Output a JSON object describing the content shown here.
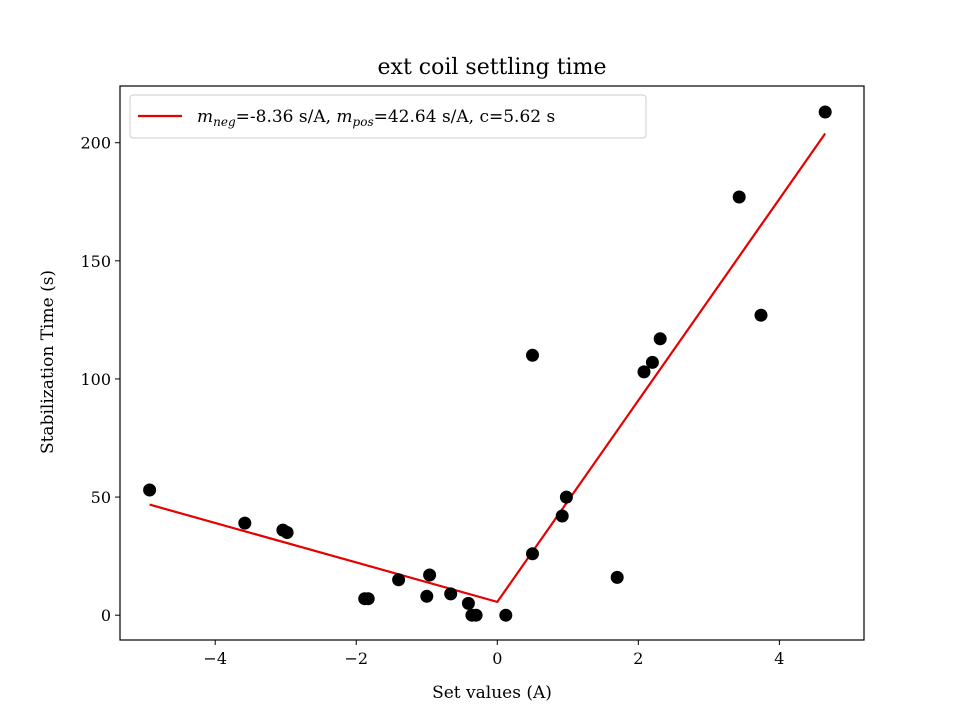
{
  "chart_data": {
    "type": "scatter",
    "title": "ext coil settling time",
    "xlabel": "Set values (A)",
    "ylabel": "Stabilization Time (s)",
    "xlim": [
      -5.35,
      5.2
    ],
    "ylim": [
      -10.5,
      224
    ],
    "xticks": [
      -4,
      -2,
      0,
      2,
      4
    ],
    "yticks": [
      0,
      50,
      100,
      150,
      200
    ],
    "xtick_labels": [
      "−4",
      "−2",
      "0",
      "2",
      "4"
    ],
    "ytick_labels": [
      "0",
      "50",
      "100",
      "150",
      "200"
    ],
    "grid": false,
    "legend_position": "top-left",
    "point_color": "#000000",
    "fit_color": "#e60000",
    "series": [
      {
        "kind": "points",
        "x": [
          -4.93,
          -3.58,
          -3.04,
          -2.98,
          -1.88,
          -1.83,
          -1.4,
          -1.0,
          -0.96,
          -0.66,
          -0.41,
          -0.36,
          -0.3,
          0.12,
          0.5,
          0.5,
          0.92,
          0.98,
          1.7,
          2.08,
          2.2,
          2.31,
          3.43,
          3.74,
          4.65
        ],
        "y": [
          53,
          39,
          36,
          35,
          7,
          7,
          15,
          8,
          17,
          9,
          5,
          0,
          0,
          0,
          26,
          110,
          42,
          50,
          16,
          103,
          107,
          117,
          177,
          127,
          213
        ]
      },
      {
        "kind": "fit",
        "name_parts": {
          "m_base_1": "m",
          "m_sub_1": "neg",
          "value_1": "=-8.36 s/A, ",
          "m_base_2": "m",
          "m_sub_2": "pos",
          "value_2": "=42.64 s/A, c=5.62 s"
        },
        "x": [
          -4.93,
          0,
          4.65
        ],
        "y": [
          46.8,
          5.62,
          203.9
        ]
      }
    ]
  }
}
